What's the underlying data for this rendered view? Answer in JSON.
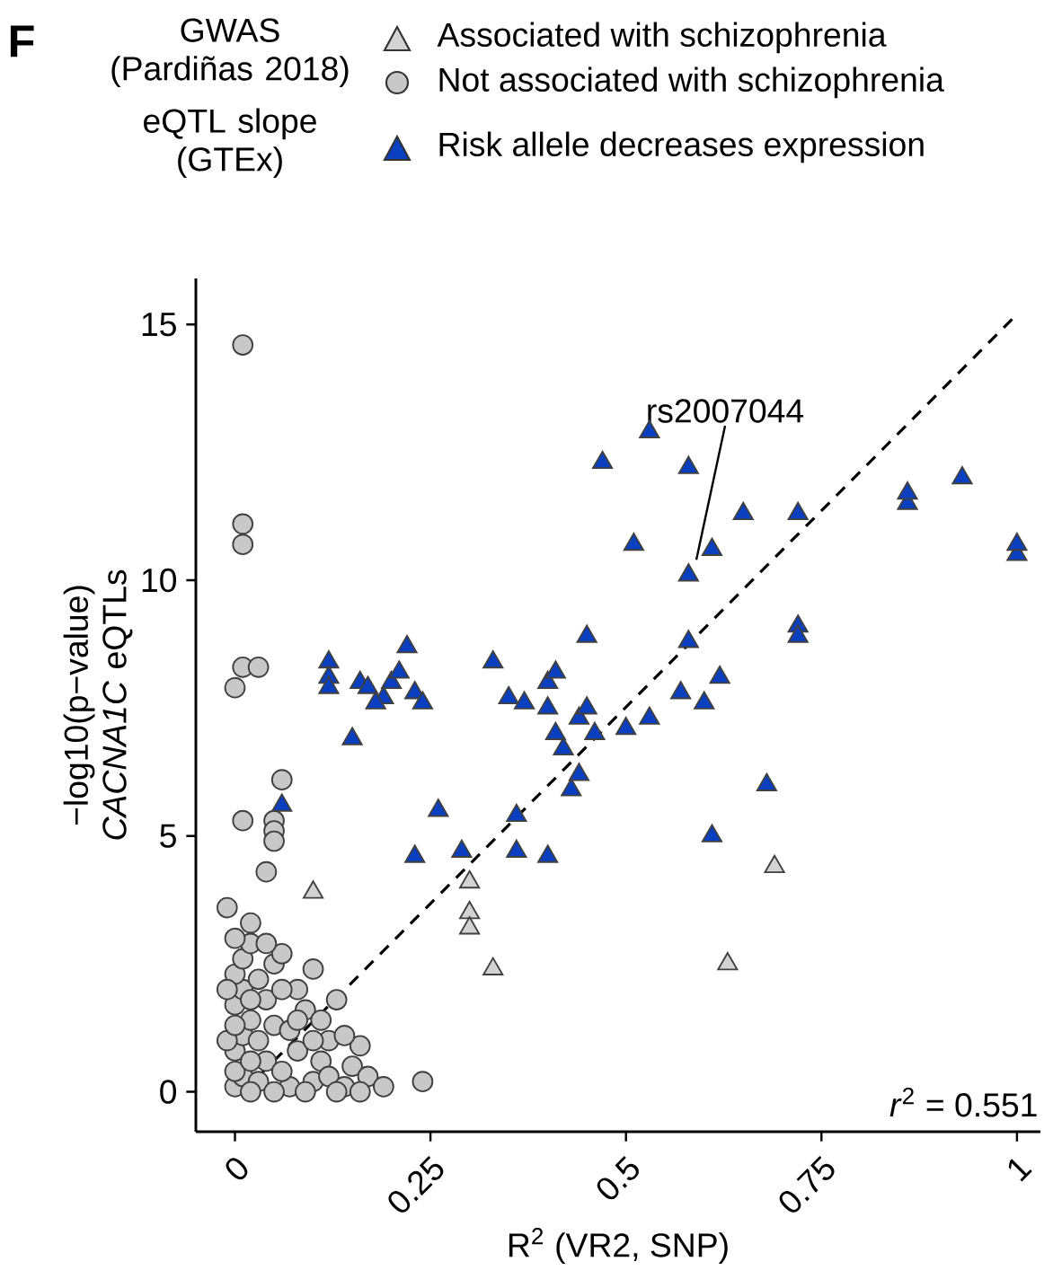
{
  "chart_data": {
    "type": "scatter",
    "xlabel": "R$^{2}$ (VR2, SNP)",
    "ylabel": "−log10(p−value) *CACNA1C* eQTLs",
    "legend_title": "GWAS (Pardiñas 2018)",
    "legend": "top",
    "xlim": [
      -0.05,
      1.03
    ],
    "ylim": [
      -0.78,
      15.9
    ],
    "xticks": [
      0,
      0.25,
      0.5,
      0.75,
      1
    ],
    "yticks": [
      0,
      5,
      10,
      15
    ],
    "grid": false,
    "annotations": [
      "F",
      "eQTL slope (GTEx)",
      {
        "text": "rs2007044",
        "x": 0.59,
        "y": 10.4
      },
      "*r*$^{2}$ = 0.551"
    ],
    "series": [
      {
        "name": "Not associated with schizophrenia",
        "color": "#c8c8c8",
        "marker": "circle",
        "x": [
          0,
          0.01,
          0,
          0.01,
          0.02,
          0,
          0.01,
          0,
          0.01,
          0.02,
          0.03,
          0.04,
          0.03,
          0.05,
          0.04,
          0.03,
          0.05,
          0.06,
          0.07,
          0.06,
          0.08,
          0.07,
          0.09,
          0.08,
          0.1,
          0.1,
          0.11,
          0.12,
          0.11,
          0.13,
          0.12,
          0.14,
          0.15,
          0.16,
          0.17,
          0.13,
          0.09,
          0.05,
          0.02,
          0,
          -0.01,
          -0.01,
          0.04,
          0.02,
          0.06,
          0.08,
          0.1,
          0.14,
          0.16,
          0.19,
          0.24,
          0.01,
          0.01,
          0.01,
          0.01,
          0.03,
          0,
          0.06,
          0.01,
          0.05,
          0.05,
          0.05,
          0.04,
          -0.01,
          0,
          0.02,
          0.02,
          0
        ],
        "values": [
          0.1,
          0.3,
          0.8,
          1.1,
          1.4,
          1.7,
          2,
          2.3,
          2.6,
          2.9,
          0.2,
          0.6,
          1,
          1.3,
          1.8,
          2.2,
          2.5,
          2.7,
          0.1,
          0.4,
          0.8,
          1.2,
          1.6,
          2,
          2.4,
          0.2,
          0.6,
          1,
          1.4,
          1.8,
          0.3,
          0.1,
          0.5,
          0.9,
          0.3,
          0,
          0,
          0,
          0,
          0.4,
          1,
          2,
          2.9,
          1.8,
          2,
          1.4,
          1,
          1.1,
          0,
          0.1,
          0.2,
          14.6,
          11.1,
          10.7,
          8.3,
          8.3,
          7.9,
          6.1,
          5.3,
          5.3,
          5.1,
          4.9,
          4.3,
          3.6,
          3,
          3.3,
          0.6,
          1.3
        ]
      },
      {
        "name": "Associated with schizophrenia",
        "color": "#d3d3d3",
        "marker": "triangle",
        "x": [
          0.1,
          0.3,
          0.3,
          0.3,
          0.33,
          0.63,
          0.69
        ],
        "values": [
          3.9,
          4.1,
          3.5,
          3.2,
          2.4,
          2.5,
          4.4
        ]
      },
      {
        "name": "Risk allele decreases expression",
        "color": "#0a3fbf",
        "marker": "triangle",
        "x": [
          0.53,
          0.47,
          0.58,
          0.51,
          0.58,
          0.61,
          0.65,
          0.72,
          0.86,
          0.86,
          0.93,
          1,
          1,
          0.72,
          0.72,
          0.12,
          0.12,
          0.12,
          0.16,
          0.17,
          0.2,
          0.21,
          0.22,
          0.23,
          0.24,
          0.19,
          0.18,
          0.15,
          0.33,
          0.35,
          0.37,
          0.4,
          0.41,
          0.4,
          0.41,
          0.42,
          0.44,
          0.45,
          0.45,
          0.46,
          0.44,
          0.43,
          0.5,
          0.53,
          0.57,
          0.58,
          0.62,
          0.6,
          0.06,
          0.23,
          0.26,
          0.29,
          0.36,
          0.36,
          0.4,
          0.61,
          0.68
        ],
        "values": [
          12.9,
          12.3,
          12.2,
          10.7,
          10.1,
          10.6,
          11.3,
          11.3,
          11.5,
          11.7,
          12,
          10.5,
          10.7,
          9.1,
          8.9,
          8.4,
          8.1,
          7.9,
          8,
          7.9,
          8,
          8.2,
          8.7,
          7.8,
          7.6,
          7.7,
          7.6,
          6.9,
          8.4,
          7.7,
          7.6,
          8,
          8.2,
          7.5,
          7,
          6.7,
          7.3,
          7.5,
          8.9,
          7,
          6.2,
          5.9,
          7.1,
          7.3,
          7.8,
          8.8,
          8.1,
          7.6,
          5.6,
          4.6,
          5.5,
          4.7,
          5.4,
          4.7,
          4.6,
          5,
          6
        ]
      },
      {
        "type": "line",
        "color": "#000000",
        "marker": "none",
        "line_style": "dashed",
        "x": [
          0.03,
          1.0
        ],
        "values": [
          0.3,
          15.2
        ]
      }
    ]
  }
}
